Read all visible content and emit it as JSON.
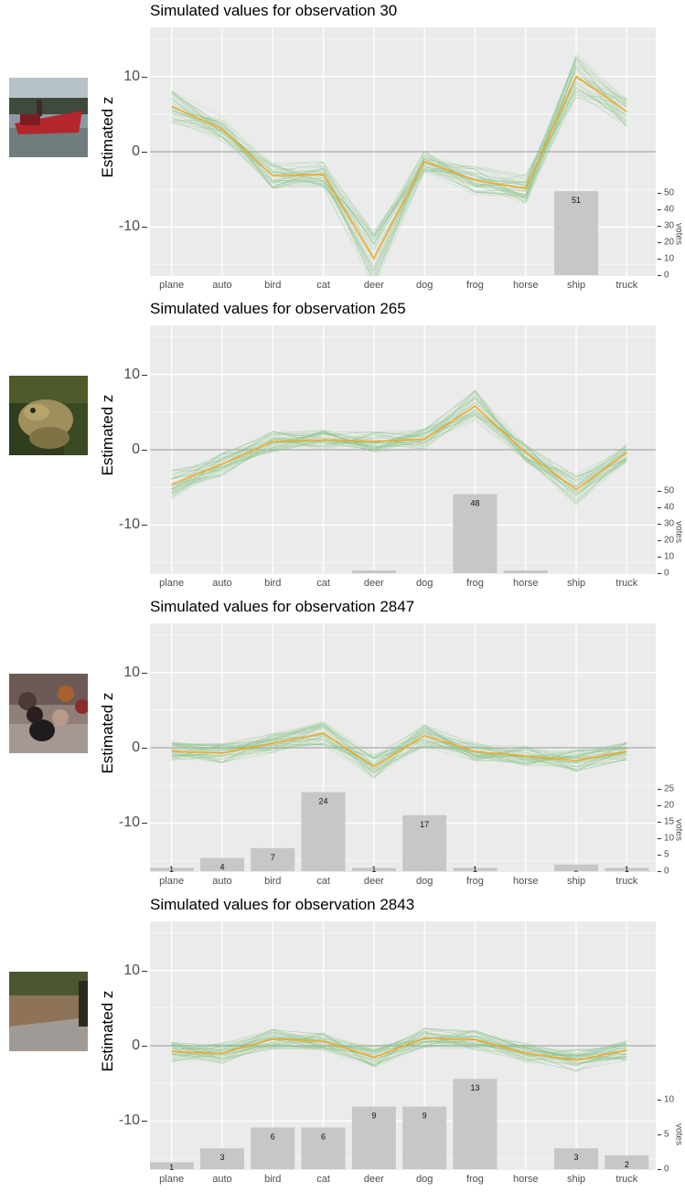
{
  "colors": {
    "panel_bg": "#ebebeb",
    "grid": "#ffffff",
    "zero_line": "#a9a9a9",
    "mean_line": "#f5a623",
    "sim_lines": "#7fbf7f",
    "bars": "#c7c7c7"
  },
  "y_axis_label": "Estimated z",
  "votes_axis_label": "votes",
  "classes": [
    "plane",
    "auto",
    "bird",
    "cat",
    "deer",
    "dog",
    "frog",
    "horse",
    "ship",
    "truck"
  ],
  "chart_data": [
    {
      "type": "line",
      "title": "Simulated values for observation 30",
      "thumbnail": "red ship on water",
      "ylabel": "Estimated z",
      "ylim": [
        -16.5,
        16.5
      ],
      "yticks": [
        "10",
        "0",
        "-10"
      ],
      "categories": [
        "plane",
        "auto",
        "bird",
        "cat",
        "deer",
        "dog",
        "frog",
        "horse",
        "ship",
        "truck"
      ],
      "series": [
        {
          "values": [
            6.0,
            3.0,
            -3.2,
            -3.0,
            -14.2,
            -1.3,
            -3.8,
            -4.9,
            10.0,
            5.3
          ]
        }
      ],
      "votes": {
        "values": [
          0,
          0,
          0,
          0,
          0,
          0,
          0,
          0,
          51,
          0
        ],
        "labels": [
          "",
          "",
          "",
          "",
          "",
          "",
          "",
          "",
          "51",
          ""
        ],
        "axis_ticks": [
          "0",
          "10",
          "20",
          "30",
          "40",
          "50"
        ],
        "axis_max": 50
      },
      "grid": true
    },
    {
      "type": "line",
      "title": "Simulated values for observation 265",
      "thumbnail": "frog",
      "ylabel": "Estimated z",
      "ylim": [
        -16.5,
        16.5
      ],
      "yticks": [
        "10",
        "0",
        "-10"
      ],
      "categories": [
        "plane",
        "auto",
        "bird",
        "cat",
        "deer",
        "dog",
        "frog",
        "horse",
        "ship",
        "truck"
      ],
      "series": [
        {
          "values": [
            -4.6,
            -1.9,
            1.1,
            1.3,
            1.1,
            1.4,
            5.8,
            -0.4,
            -5.3,
            -0.4
          ]
        }
      ],
      "votes": {
        "values": [
          0,
          0,
          0,
          0,
          1,
          0,
          48,
          1,
          0,
          0
        ],
        "labels": [
          "",
          "",
          "",
          "",
          "",
          "",
          "48",
          "",
          "",
          ""
        ],
        "axis_ticks": [
          "0",
          "10",
          "20",
          "30",
          "40",
          "50"
        ],
        "axis_max": 50
      },
      "grid": true
    },
    {
      "type": "line",
      "title": "Simulated values for observation 2847",
      "thumbnail": "people with dog",
      "ylabel": "Estimated z",
      "ylim": [
        -16.5,
        16.5
      ],
      "yticks": [
        "10",
        "0",
        "-10"
      ],
      "categories": [
        "plane",
        "auto",
        "bird",
        "cat",
        "deer",
        "dog",
        "frog",
        "horse",
        "ship",
        "truck"
      ],
      "series": [
        {
          "values": [
            -0.5,
            -0.7,
            0.6,
            1.9,
            -2.5,
            1.6,
            -0.5,
            -1.1,
            -1.7,
            -0.5
          ]
        }
      ],
      "votes": {
        "values": [
          1,
          4,
          7,
          24,
          1,
          17,
          1,
          0,
          2,
          1
        ],
        "labels": [
          "1",
          "4",
          "7",
          "24",
          "1",
          "17",
          "1",
          "",
          "2",
          "1"
        ],
        "axis_ticks": [
          "0",
          "5",
          "10",
          "15",
          "20",
          "25"
        ],
        "axis_max": 25
      },
      "grid": true
    },
    {
      "type": "line",
      "title": "Simulated values for observation 2843",
      "thumbnail": "stone path",
      "ylabel": "Estimated z",
      "ylim": [
        -16.5,
        16.5
      ],
      "yticks": [
        "10",
        "0",
        "-10"
      ],
      "categories": [
        "plane",
        "auto",
        "bird",
        "cat",
        "deer",
        "dog",
        "frog",
        "horse",
        "ship",
        "truck"
      ],
      "series": [
        {
          "values": [
            -0.8,
            -1.0,
            0.9,
            0.6,
            -1.5,
            1.0,
            0.8,
            -1.0,
            -1.9,
            -0.6
          ]
        }
      ],
      "votes": {
        "values": [
          1,
          3,
          6,
          6,
          9,
          9,
          13,
          0,
          3,
          2
        ],
        "labels": [
          "1",
          "3",
          "6",
          "6",
          "9",
          "9",
          "13",
          "",
          "3",
          "2"
        ],
        "axis_ticks": [
          "0",
          "5",
          "10"
        ],
        "axis_max": 10
      },
      "grid": true
    }
  ]
}
